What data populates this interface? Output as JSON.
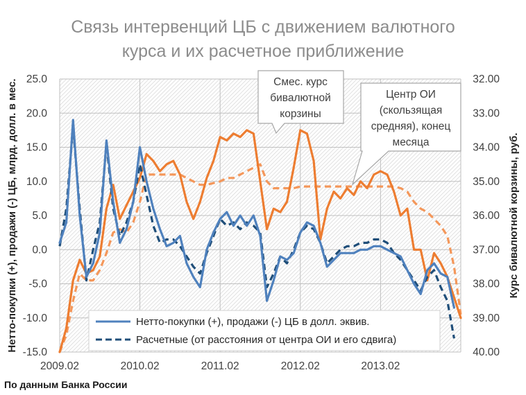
{
  "chart_data": {
    "type": "line",
    "title_lines": [
      "Связь интервенций ЦБ с движением валютного",
      "курса и их расчетное приближение"
    ],
    "ylabel_left": "Нетто-покупки (+), продажи (-) ЦБ, млрд. долл. в мес.",
    "ylabel_right": "Курс бивалютной корзины, руб.",
    "source": "По данным Банка России",
    "x_tick_labels": [
      "2009.02",
      "2010.02",
      "2011.02",
      "2012.02",
      "2013.02"
    ],
    "x_tick_index": [
      0,
      12,
      24,
      36,
      48
    ],
    "y_left_ticks": [
      "25.0",
      "20.0",
      "15.0",
      "10.0",
      "5.0",
      "0.0",
      "-5.0",
      "-10.0",
      "-15.0"
    ],
    "y_left_lim": [
      -15,
      25
    ],
    "y_right_ticks": [
      "32.00",
      "33.00",
      "34.00",
      "35.00",
      "36.00",
      "37.00",
      "38.00",
      "39.00",
      "40.00"
    ],
    "y_right_lim": [
      40,
      32
    ],
    "y_right_inverted": true,
    "grid": true,
    "legend_position": "bottom-center",
    "series": [
      {
        "name": "Нетто-покупки (+), продажи (-) ЦБ в долл. эквив.",
        "axis": "left",
        "style": "solid",
        "color": "#4f81bd",
        "values": [
          1.0,
          4.0,
          19.0,
          5.0,
          -4.0,
          -2.0,
          2.5,
          16.0,
          7.0,
          1.0,
          3.0,
          7.0,
          15.0,
          10.0,
          6.0,
          3.0,
          0.5,
          1.0,
          2.0,
          -2.0,
          -4.0,
          -5.5,
          0.0,
          2.5,
          4.5,
          5.5,
          3.5,
          5.0,
          3.5,
          5.0,
          2.0,
          -7.5,
          -4.5,
          -1.0,
          -1.5,
          -0.5,
          2.5,
          4.0,
          3.5,
          1.0,
          -2.5,
          -1.5,
          -0.5,
          -0.5,
          -0.5,
          0.0,
          0.0,
          0.5,
          0.5,
          0.0,
          -0.5,
          -1.0,
          -3.0,
          -5.0,
          -6.5,
          -3.0,
          -2.0,
          -3.5,
          -4.0,
          -8.5
        ]
      },
      {
        "name": "Расчетные (от расстояния от центра ОИ и его сдвига)",
        "axis": "left",
        "style": "dashed",
        "color": "#1f4e79",
        "values": [
          0.5,
          6.0,
          18.0,
          6.0,
          -4.5,
          0.0,
          4.0,
          15.5,
          6.0,
          2.0,
          4.0,
          7.0,
          12.5,
          8.0,
          3.5,
          1.0,
          1.5,
          1.5,
          0.5,
          -1.0,
          -2.5,
          -3.5,
          -0.5,
          2.0,
          4.5,
          3.5,
          4.0,
          3.0,
          4.0,
          3.5,
          2.5,
          -5.5,
          -3.5,
          -1.0,
          -2.0,
          0.0,
          2.5,
          3.5,
          3.0,
          1.0,
          -2.0,
          -1.0,
          0.0,
          0.5,
          0.5,
          1.0,
          1.0,
          1.5,
          1.5,
          1.0,
          -0.5,
          -1.5,
          -3.0,
          -4.5,
          -6.0,
          -4.0,
          -3.0,
          -5.5,
          -7.5,
          -13.0
        ]
      },
      {
        "name": "Смес. курс бивалютной корзины",
        "axis": "right",
        "style": "solid",
        "color": "#ed7d31",
        "values": [
          40.0,
          39.3,
          37.9,
          37.3,
          37.7,
          37.6,
          37.2,
          35.8,
          35.1,
          36.1,
          35.7,
          35.3,
          34.9,
          34.2,
          34.4,
          34.7,
          34.5,
          34.4,
          34.8,
          35.6,
          36.1,
          35.6,
          34.9,
          34.4,
          33.7,
          33.8,
          33.6,
          33.7,
          33.5,
          33.6,
          35.0,
          36.4,
          35.8,
          35.9,
          35.6,
          34.6,
          33.5,
          33.6,
          34.4,
          36.7,
          35.8,
          35.3,
          35.5,
          35.2,
          35.4,
          35.0,
          35.2,
          34.8,
          34.7,
          34.8,
          35.3,
          36.0,
          35.8,
          37.0,
          37.0,
          37.9,
          37.1,
          37.4,
          37.8,
          38.4,
          39.0
        ]
      },
      {
        "name": "Центр ОИ (скользящая средняя), конец месяца",
        "axis": "right",
        "style": "dashed",
        "color": "#f4975a",
        "values": [
          40.0,
          39.5,
          38.5,
          37.7,
          37.9,
          37.9,
          37.6,
          37.1,
          36.5,
          36.4,
          36.5,
          36.2,
          35.6,
          34.8,
          34.8,
          34.8,
          34.8,
          34.8,
          34.8,
          34.9,
          35.0,
          35.1,
          35.1,
          35.05,
          35.0,
          34.9,
          34.9,
          34.8,
          34.7,
          34.6,
          34.5,
          35.0,
          35.2,
          35.2,
          35.2,
          35.2,
          35.15,
          35.15,
          35.15,
          35.15,
          35.15,
          35.15,
          35.15,
          35.15,
          35.15,
          35.15,
          35.15,
          35.15,
          35.15,
          35.15,
          35.15,
          35.2,
          35.3,
          35.6,
          35.8,
          35.9,
          36.1,
          36.3,
          36.6,
          37.5,
          38.9
        ]
      }
    ],
    "callouts": [
      {
        "text": [
          "Смес. курс",
          "бивалютной",
          "корзины"
        ],
        "points_to_series": 2
      },
      {
        "text": [
          "Центр ОИ",
          "(скользящая",
          "средняя), конец",
          "месяца"
        ],
        "points_to_series": 3
      }
    ]
  }
}
